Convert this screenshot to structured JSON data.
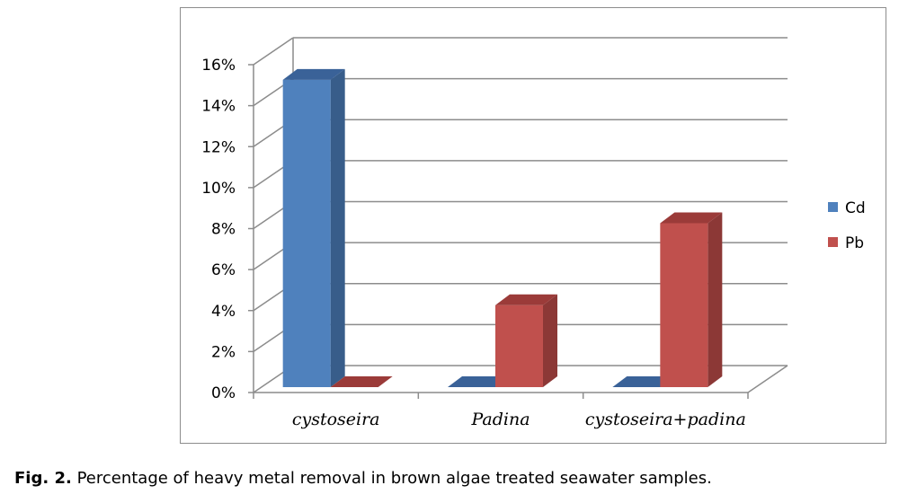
{
  "caption": {
    "label": "Fig. 2.",
    "text": "Percentage of heavy metal removal in brown algae treated seawater samples."
  },
  "chart_data": {
    "type": "bar",
    "categories": [
      "cystoseira",
      "Padina",
      "cystoseira+padina"
    ],
    "series": [
      {
        "name": "Cd",
        "values": [
          15,
          0,
          0
        ],
        "color": "#4f81bd",
        "side_color": "#385d8a",
        "top_color": "#3a6298"
      },
      {
        "name": "Pb",
        "values": [
          0,
          4,
          8
        ],
        "color": "#c0504d",
        "side_color": "#8c3836",
        "top_color": "#9b3b39"
      }
    ],
    "ylim": [
      0,
      16
    ],
    "y_ticks": [
      "0%",
      "2%",
      "4%",
      "6%",
      "8%",
      "10%",
      "12%",
      "14%",
      "16%"
    ],
    "title": "",
    "xlabel": "",
    "ylabel": "",
    "grid": true,
    "three_d": true,
    "legend_position": "right"
  }
}
